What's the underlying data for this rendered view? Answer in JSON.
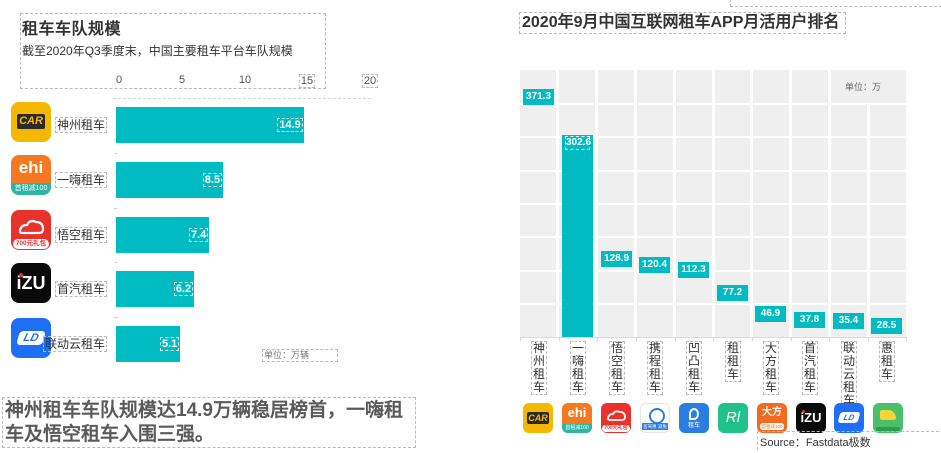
{
  "left_panel": {
    "title": "租车车队规模",
    "subtitle": "截至2020年Q3季度末，中国主要租车平台车队规模",
    "axis_ticks": [
      "0",
      "5",
      "10",
      "15",
      "20"
    ],
    "unit": "单位：万辆",
    "headline": "神州租车车队规模达14.9万辆稳居榜首，一嗨租车及悟空租车入围三强。",
    "logos": [
      {
        "icon": "car-inc-logo-icon",
        "text": "CAR",
        "color": "#f5b800"
      },
      {
        "icon": "ehi-logo-icon",
        "text": "ehi",
        "sub": "首租减100",
        "color": "#f47920"
      },
      {
        "icon": "wukong-logo-icon",
        "text": "",
        "sub": "700元礼包",
        "color": "#e8322b"
      },
      {
        "icon": "izu-logo-icon",
        "text": "iZU",
        "color": "#0a0a0a"
      },
      {
        "icon": "ld-logo-icon",
        "text": "LD",
        "color": "#1e6ff5"
      }
    ]
  },
  "right_panel": {
    "title": "2020年9月中国互联网租车APP月活用户排名",
    "unit": "单位：万",
    "source": "Source：Fastdata极数",
    "logos": [
      {
        "icon": "car-inc-logo-icon",
        "text": "CAR",
        "color": "#f5b800"
      },
      {
        "icon": "ehi-logo-icon",
        "text": "ehi",
        "sub": "首租减100",
        "color": "#f47920"
      },
      {
        "icon": "wukong-logo-icon",
        "text": "",
        "sub": "700元礼包",
        "color": "#e8322b"
      },
      {
        "icon": "ctrip-logo-icon",
        "text": "",
        "sub": "首驾惠 减免",
        "color": "#ffffff"
      },
      {
        "icon": "aotu-logo-icon",
        "text": "",
        "sub": "租车",
        "color": "#2a7de1"
      },
      {
        "icon": "zuzu-logo-icon",
        "text": "Rl",
        "color": "#1fc28b"
      },
      {
        "icon": "dafang-logo-icon",
        "text": "大方",
        "sub": "首租减100",
        "color": "#f26b21"
      },
      {
        "icon": "izu-logo-icon",
        "text": "iZU",
        "color": "#0a0a0a"
      },
      {
        "icon": "ld-logo-icon",
        "text": "LD",
        "color": "#1e6ff5"
      },
      {
        "icon": "huizu-logo-icon",
        "text": "",
        "color": "#4cbf6b"
      }
    ]
  },
  "chart_data": [
    {
      "type": "bar",
      "orientation": "horizontal",
      "title": "租车车队规模",
      "subtitle": "截至2020年Q3季度末，中国主要租车平台车队规模",
      "categories": [
        "神州租车",
        "一嗨租车",
        "悟空租车",
        "首汽租车",
        "联动云租车"
      ],
      "values": [
        14.9,
        8.5,
        7.4,
        6.2,
        5.1
      ],
      "xlabel": "",
      "ylabel": "",
      "xlim": [
        0,
        20
      ],
      "x_ticks": [
        0,
        5,
        10,
        15,
        20
      ],
      "unit": "万辆",
      "color": "#00bcc2",
      "grid": false
    },
    {
      "type": "bar",
      "orientation": "vertical",
      "title": "2020年9月中国互联网租车APP月活用户排名",
      "categories": [
        "神州租车",
        "一嗨租车",
        "悟空租车",
        "携程租车",
        "凹凸租车",
        "租租车",
        "大方租车",
        "首汽租车",
        "联动云租车",
        "惠租车"
      ],
      "values": [
        371.3,
        302.6,
        128.9,
        120.4,
        112.3,
        77.2,
        46.9,
        37.8,
        35.4,
        28.5
      ],
      "xlabel": "",
      "ylabel": "",
      "ylim": [
        0,
        400
      ],
      "unit": "万",
      "source": "Fastdata极数",
      "color": "#00bcc2",
      "grid": true
    }
  ]
}
